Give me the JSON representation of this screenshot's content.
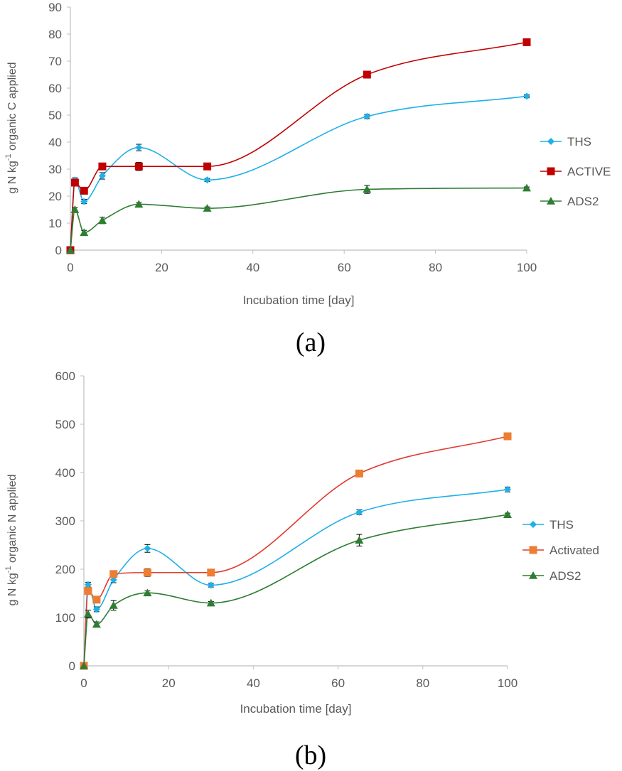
{
  "chart_data": [
    {
      "type": "line",
      "panel_label": "(a)",
      "ylabel": "g N kg-1 organic C applied",
      "ylabel_parts": {
        "pre": "g N kg",
        "sup": "-1",
        "post": " organic C applied"
      },
      "xlabel": "Incubation time [day]",
      "xlim": [
        0,
        100
      ],
      "ylim": [
        0,
        90
      ],
      "xticks": [
        0,
        20,
        40,
        60,
        80,
        100
      ],
      "yticks": [
        0,
        10,
        20,
        30,
        40,
        50,
        60,
        70,
        80,
        90
      ],
      "grid": false,
      "legend_position": "right",
      "series": [
        {
          "name": "THS",
          "color": "#1FB0E8",
          "marker": "diamond",
          "x": [
            0,
            1,
            3,
            7,
            15,
            30,
            65,
            100
          ],
          "y": [
            0,
            26,
            18,
            27.5,
            38,
            26,
            49.5,
            57
          ],
          "err": [
            0,
            0.8,
            0.8,
            1.2,
            1.2,
            0.6,
            0.8,
            0.6
          ]
        },
        {
          "name": "ACTIVE",
          "color": "#C00000",
          "marker": "square",
          "x": [
            0,
            1,
            3,
            7,
            15,
            30,
            65,
            100
          ],
          "y": [
            0,
            25,
            22,
            31,
            31,
            31,
            65,
            77
          ],
          "err": [
            0,
            0.5,
            0.5,
            0.5,
            1.5,
            0.5,
            0.5,
            0.5
          ]
        },
        {
          "name": "ADS2",
          "color": "#2E7D32",
          "marker": "triangle",
          "x": [
            0,
            1,
            3,
            7,
            15,
            30,
            65,
            100
          ],
          "y": [
            0,
            15,
            6.5,
            11,
            17,
            15.5,
            22.5,
            23
          ],
          "err": [
            0,
            0.8,
            0.8,
            1.2,
            0.6,
            0.5,
            1.5,
            0.4
          ]
        }
      ]
    },
    {
      "type": "line",
      "panel_label": "(b)",
      "ylabel": "g N kg-1 organic N applied",
      "ylabel_parts": {
        "pre": "g N kg",
        "sup": "-1",
        "post": " organic N applied"
      },
      "xlabel": "Incubation time [day]",
      "xlim": [
        0,
        100
      ],
      "ylim": [
        0,
        600
      ],
      "xticks": [
        0,
        20,
        40,
        60,
        80,
        100
      ],
      "yticks": [
        0,
        100,
        200,
        300,
        400,
        500,
        600
      ],
      "grid": false,
      "legend_position": "right",
      "series": [
        {
          "name": "THS",
          "color": "#1FB0E8",
          "marker": "diamond",
          "x": [
            0,
            1,
            3,
            7,
            15,
            30,
            65,
            100
          ],
          "y": [
            0,
            168,
            117,
            178,
            243,
            167,
            318,
            365
          ],
          "err": [
            0,
            5,
            5,
            6,
            8,
            4,
            5,
            5
          ]
        },
        {
          "name": "Activated",
          "color": "#ED7D31",
          "line_color": "#E03C31",
          "marker": "square",
          "x": [
            0,
            1,
            3,
            7,
            15,
            30,
            65,
            100
          ],
          "y": [
            0,
            155,
            137,
            190,
            193,
            193,
            398,
            475
          ],
          "err": [
            0,
            6,
            4,
            4,
            8,
            4,
            3,
            3
          ]
        },
        {
          "name": "ADS2",
          "color": "#2E7D32",
          "marker": "triangle",
          "x": [
            0,
            1,
            3,
            7,
            15,
            30,
            65,
            100
          ],
          "y": [
            0,
            107,
            86,
            125,
            151,
            130,
            260,
            313
          ],
          "err": [
            0,
            8,
            5,
            10,
            4,
            3,
            12,
            3
          ]
        }
      ]
    }
  ]
}
